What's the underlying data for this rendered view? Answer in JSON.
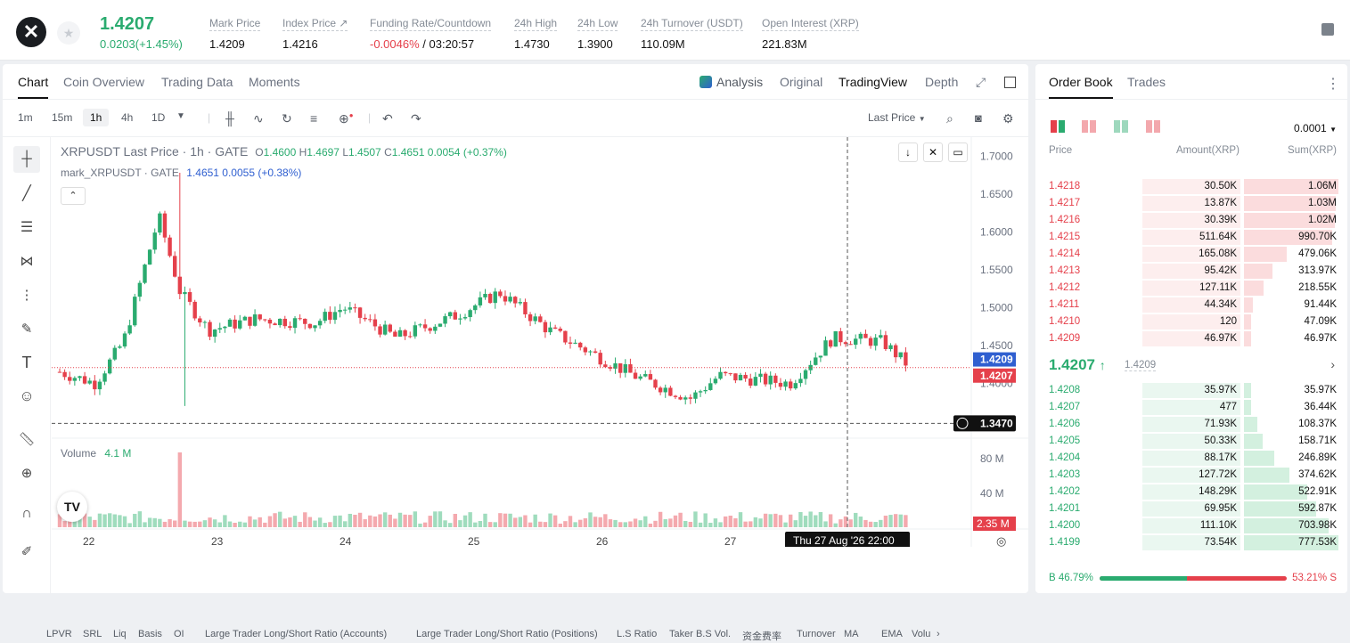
{
  "header": {
    "logo_glyph": "✕",
    "last_price": "1.4207",
    "change": "0.0203(+1.45%)",
    "stats": [
      {
        "label": "Mark Price",
        "value": "1.4209"
      },
      {
        "label": "Index Price ↗",
        "value": "1.4216"
      },
      {
        "label": "Funding Rate/Countdown",
        "value_neg": "-0.0046%",
        "value": " / 03:20:57"
      },
      {
        "label": "24h High",
        "value": "1.4730"
      },
      {
        "label": "24h Low",
        "value": "1.3900"
      },
      {
        "label": "24h Turnover (USDT)",
        "value": "110.09M"
      },
      {
        "label": "Open Interest (XRP)",
        "value": "221.83M"
      }
    ]
  },
  "chart_tabs": [
    "Chart",
    "Coin Overview",
    "Trading Data",
    "Moments"
  ],
  "view_modes": {
    "analysis": "Analysis",
    "original": "Original",
    "tradingview": "TradingView",
    "depth": "Depth"
  },
  "intervals": [
    "1m",
    "15m",
    "1h",
    "4h",
    "1D"
  ],
  "price_type": "Last Price",
  "legend": {
    "symbol": "XRPUSDT Last Price · 1h · GATE",
    "o": "O",
    "o_val": "1.4600",
    "h": "H",
    "h_val": "1.4697",
    "l": "L",
    "l_val": "1.4507",
    "c": "C",
    "c_val": "1.4651",
    "chg": "0.0054 (+0.37%)",
    "mark_label": "mark_XRPUSDT · GATE",
    "mark_vals": "1.4651  0.0055 (+0.38%)"
  },
  "volume": {
    "label": "Volume",
    "value": "4.1 M",
    "ticks": [
      "80 M",
      "40 M"
    ],
    "last": "2.35 M"
  },
  "price_axis": [
    "1.7000",
    "1.6500",
    "1.6000",
    "1.5500",
    "1.5000",
    "1.4500",
    "1.4000"
  ],
  "price_tags": {
    "mark": "1.4209",
    "last": "1.4207",
    "cursor": "1.3470"
  },
  "date_axis": [
    "22",
    "23",
    "24",
    "25",
    "26",
    "27"
  ],
  "crosshair_time": "Thu 27 Aug '26   22:00",
  "indicator_tabs": [
    "LPVR",
    "SRL",
    "Liq",
    "Basis",
    "OI",
    "Large Trader Long/Short Ratio (Accounts)",
    "Large Trader Long/Short Ratio (Positions)",
    "L.S Ratio",
    "Taker B.S Vol.",
    "资金费率",
    "Turnover",
    "MA",
    "EMA",
    "Volu"
  ],
  "order_book": {
    "tabs": [
      "Order Book",
      "Trades"
    ],
    "precision": "0.0001",
    "headers": {
      "price": "Price",
      "amount": "Amount(XRP)",
      "sum": "Sum(XRP)"
    },
    "asks": [
      {
        "price": "1.4218",
        "amount": "30.50K",
        "sum": "1.06M",
        "depth": 1.0
      },
      {
        "price": "1.4217",
        "amount": "13.87K",
        "sum": "1.03M",
        "depth": 0.97
      },
      {
        "price": "1.4216",
        "amount": "30.39K",
        "sum": "1.02M",
        "depth": 0.96
      },
      {
        "price": "1.4215",
        "amount": "511.64K",
        "sum": "990.70K",
        "depth": 0.93
      },
      {
        "price": "1.4214",
        "amount": "165.08K",
        "sum": "479.06K",
        "depth": 0.45
      },
      {
        "price": "1.4213",
        "amount": "95.42K",
        "sum": "313.97K",
        "depth": 0.3
      },
      {
        "price": "1.4212",
        "amount": "127.11K",
        "sum": "218.55K",
        "depth": 0.21
      },
      {
        "price": "1.4211",
        "amount": "44.34K",
        "sum": "91.44K",
        "depth": 0.09
      },
      {
        "price": "1.4210",
        "amount": "120",
        "sum": "47.09K",
        "depth": 0.05
      },
      {
        "price": "1.4209",
        "amount": "46.97K",
        "sum": "46.97K",
        "depth": 0.04
      }
    ],
    "mid_price": "1.4207",
    "mid_arrow": "↑",
    "mid_mark": "1.4209",
    "bids": [
      {
        "price": "1.4208",
        "amount": "35.97K",
        "sum": "35.97K",
        "depth": 0.05
      },
      {
        "price": "1.4207",
        "amount": "477",
        "sum": "36.44K",
        "depth": 0.05
      },
      {
        "price": "1.4206",
        "amount": "71.93K",
        "sum": "108.37K",
        "depth": 0.14
      },
      {
        "price": "1.4205",
        "amount": "50.33K",
        "sum": "158.71K",
        "depth": 0.2
      },
      {
        "price": "1.4204",
        "amount": "88.17K",
        "sum": "246.89K",
        "depth": 0.32
      },
      {
        "price": "1.4203",
        "amount": "127.72K",
        "sum": "374.62K",
        "depth": 0.48
      },
      {
        "price": "1.4202",
        "amount": "148.29K",
        "sum": "522.91K",
        "depth": 0.67
      },
      {
        "price": "1.4201",
        "amount": "69.95K",
        "sum": "592.87K",
        "depth": 0.76
      },
      {
        "price": "1.4200",
        "amount": "111.10K",
        "sum": "703.98K",
        "depth": 0.9
      },
      {
        "price": "1.4199",
        "amount": "73.54K",
        "sum": "777.53K",
        "depth": 1.0
      }
    ],
    "ratio_buy": "B 46.79%",
    "ratio_sell": "53.21% S",
    "buy_fraction": 0.4679
  },
  "colors": {
    "up": "#2aab6f",
    "down": "#e5404b",
    "up_bar": "#eaf7f0",
    "down_bar": "#fdeeee",
    "mark_tag": "#2f5fd0"
  }
}
